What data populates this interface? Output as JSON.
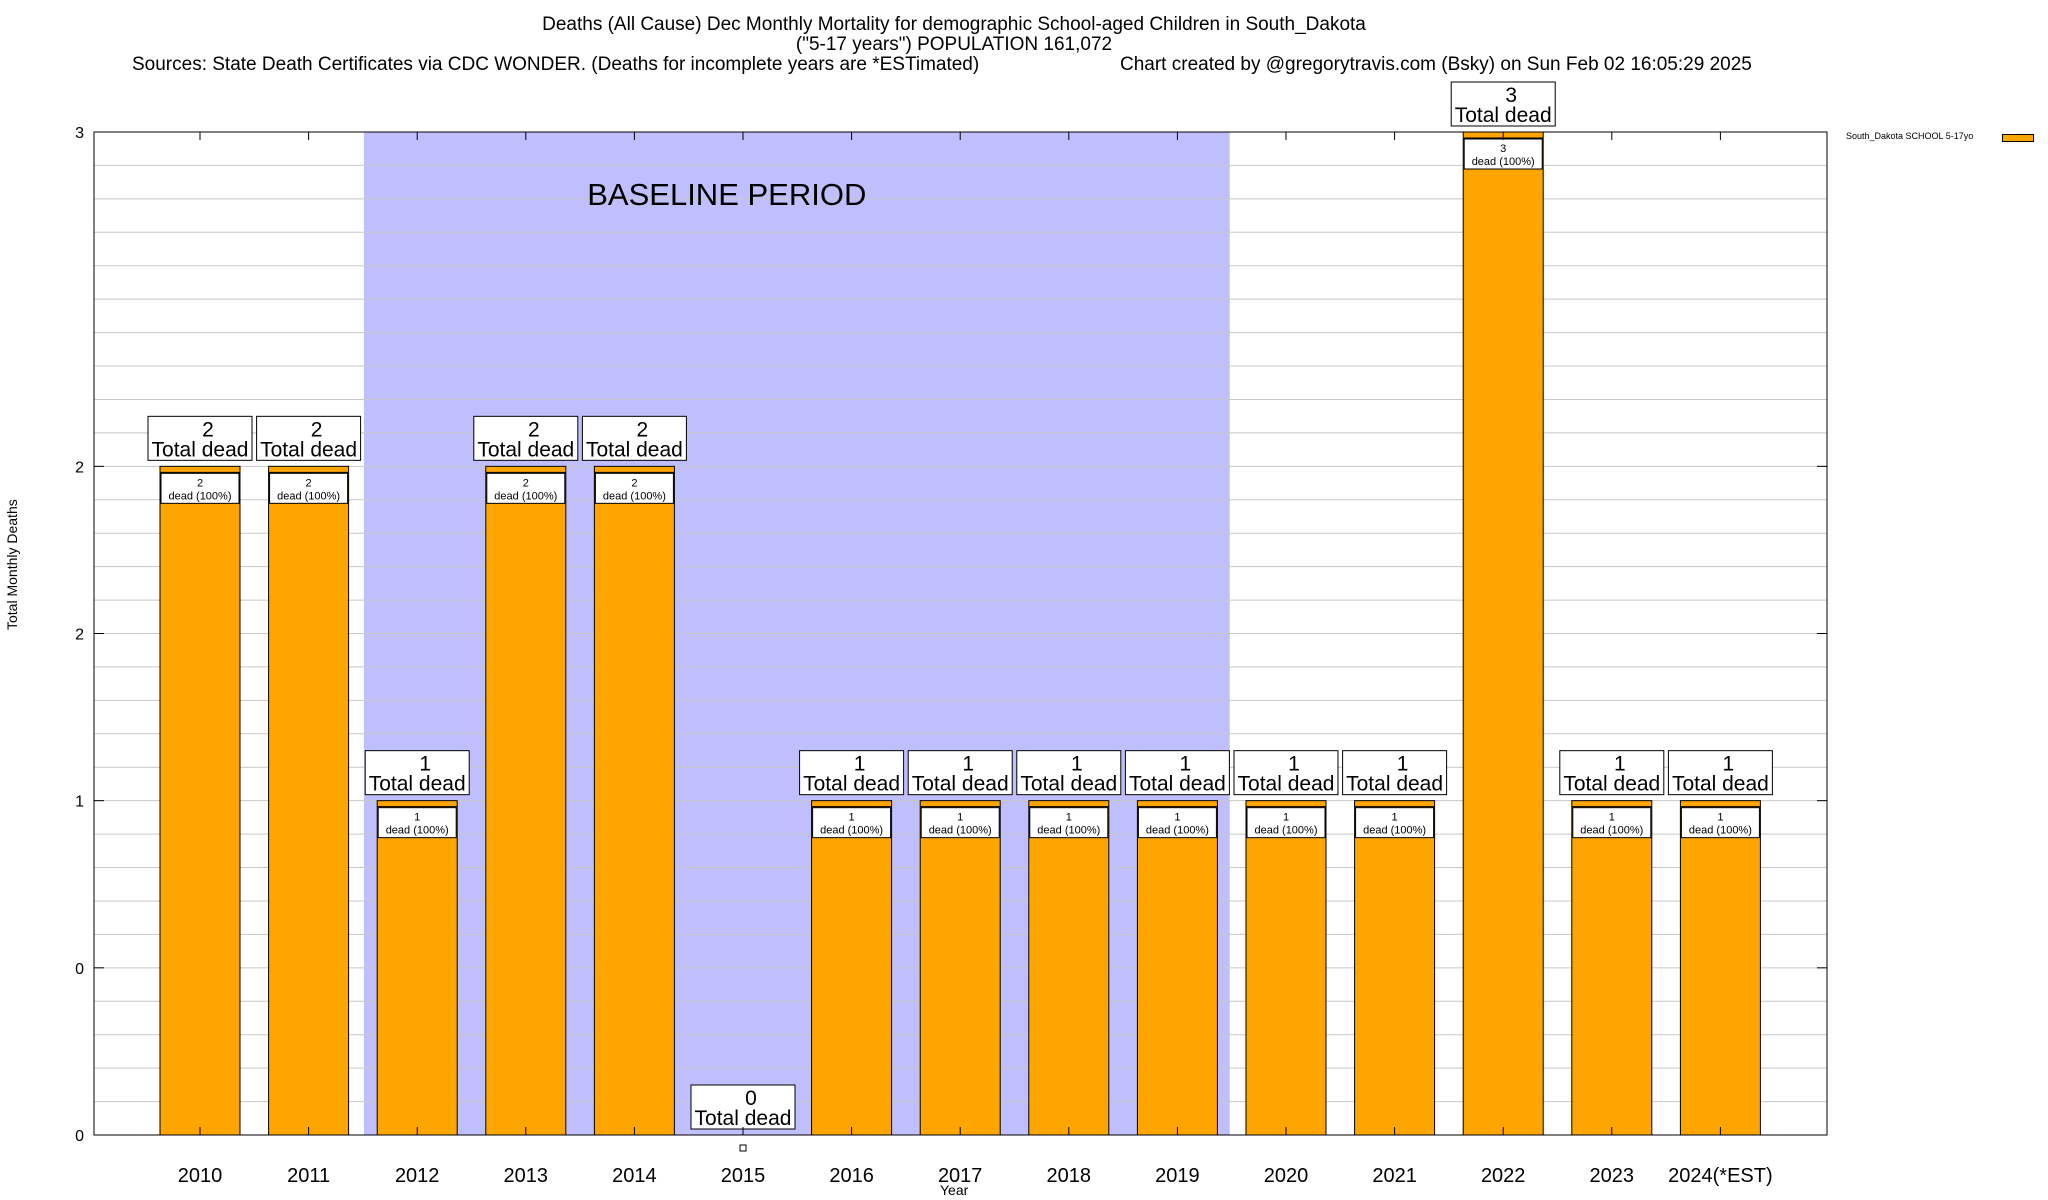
{
  "titles": {
    "line1": "Deaths (All Cause) Dec Monthly Mortality for demographic School-aged Children in South_Dakota",
    "line2": "(\"5-17 years\") POPULATION 161,072",
    "sources": "Sources: State Death Certificates via CDC WONDER. (Deaths for incomplete years are *ESTimated)",
    "credit": "Chart created by @gregorytravis.com (Bsky) on Sun Feb 02 16:05:29 2025"
  },
  "colors": {
    "bar": "#ffa500",
    "baseline": "#bfbffd",
    "grid": "#c8c8c8"
  },
  "chart_data": {
    "type": "bar",
    "xlabel": "Year",
    "ylabel": "Total Monthly Deaths",
    "ylim": [
      0,
      3
    ],
    "y_tick_labels": [
      "0",
      "0",
      "1",
      "2",
      "2",
      "3"
    ],
    "y_tick_values": [
      0,
      0.5,
      1,
      1.5,
      2,
      3
    ],
    "grid": true,
    "legend_placement": "top-right",
    "categories": [
      "2010",
      "2011",
      "2012",
      "2013",
      "2014",
      "2015",
      "2016",
      "2017",
      "2018",
      "2019",
      "2020",
      "2021",
      "2022",
      "2023",
      "2024(*EST)"
    ],
    "series": [
      {
        "name": "South_Dakota SCHOOL 5-17yo",
        "values": [
          2,
          2,
          1,
          2,
          2,
          0,
          1,
          1,
          1,
          1,
          1,
          1,
          3,
          1,
          1
        ]
      }
    ],
    "total_label_suffix": "Total dead",
    "segment_label_suffix": "dead (100%)",
    "annotations": [
      {
        "text": "BASELINE PERIOD",
        "from": "2012",
        "to": "2019"
      }
    ]
  }
}
